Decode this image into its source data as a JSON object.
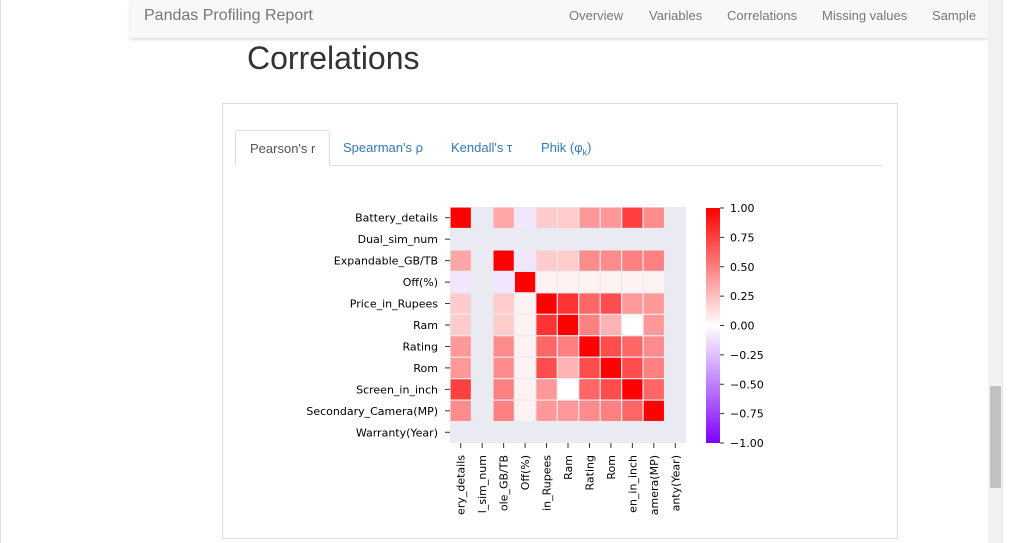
{
  "navbar": {
    "brand": "Pandas Profiling Report",
    "links": [
      "Overview",
      "Variables",
      "Correlations",
      "Missing values",
      "Sample"
    ]
  },
  "page": {
    "title": "Correlations"
  },
  "tabs": [
    "Pearson's r",
    "Spearman's ρ",
    "Kendall's τ",
    "Phik (φk)"
  ],
  "colors": {
    "positive": "#ff0000",
    "negative": "#7f00ff",
    "neutral": "#ffffff",
    "grid": "#eaeaf2",
    "link": "#337ab7"
  },
  "chart_data": {
    "type": "heatmap",
    "title": "",
    "variables": [
      "Battery_details",
      "Dual_sim_num",
      "Expandable_GB/TB",
      "Off(%)",
      "Price_in_Rupees",
      "Ram",
      "Rating",
      "Rom",
      "Screen_in_inch",
      "Secondary_Camera(MP)",
      "Warranty(Year)"
    ],
    "x_tick_labels_visible": [
      "ery_details",
      "l_sim_num",
      "ole_GB/TB",
      "Off(%)",
      "in_Rupees",
      "Ram",
      "Rating",
      "Rom",
      "en_in_inch",
      "amera(MP)",
      "anty(Year)"
    ],
    "matrix": [
      [
        1.0,
        null,
        0.35,
        -0.1,
        0.2,
        0.2,
        0.4,
        0.4,
        0.75,
        0.45,
        null
      ],
      [
        null,
        null,
        null,
        null,
        null,
        null,
        null,
        null,
        null,
        null,
        null
      ],
      [
        0.35,
        null,
        1.0,
        -0.1,
        0.2,
        0.2,
        0.45,
        0.45,
        0.5,
        0.5,
        null
      ],
      [
        -0.1,
        null,
        -0.1,
        1.0,
        0.05,
        0.05,
        0.05,
        0.05,
        0.05,
        0.05,
        null
      ],
      [
        0.2,
        null,
        0.2,
        0.05,
        1.0,
        0.8,
        0.6,
        0.7,
        0.4,
        0.4,
        null
      ],
      [
        0.2,
        null,
        0.2,
        0.05,
        0.8,
        1.0,
        0.5,
        0.3,
        0.0,
        0.4,
        null
      ],
      [
        0.4,
        null,
        0.45,
        0.05,
        0.6,
        0.5,
        1.0,
        0.7,
        0.6,
        0.45,
        null
      ],
      [
        0.4,
        null,
        0.45,
        0.05,
        0.7,
        0.3,
        0.7,
        1.0,
        0.7,
        0.5,
        null
      ],
      [
        0.75,
        null,
        0.5,
        0.05,
        0.4,
        0.0,
        0.6,
        0.7,
        1.0,
        0.6,
        null
      ],
      [
        0.45,
        null,
        0.5,
        0.05,
        0.4,
        0.4,
        0.45,
        0.5,
        0.6,
        1.0,
        null
      ],
      [
        null,
        null,
        null,
        null,
        null,
        null,
        null,
        null,
        null,
        null,
        null
      ]
    ],
    "colorbar": {
      "ticks": [
        1.0,
        0.75,
        0.5,
        0.25,
        0.0,
        -0.25,
        -0.5,
        -0.75,
        -1.0
      ],
      "tick_labels": [
        "1.00",
        "0.75",
        "0.50",
        "0.25",
        "0.00",
        "−0.25",
        "−0.50",
        "−0.75",
        "−1.00"
      ],
      "vmin": -1.0,
      "vmax": 1.0
    }
  }
}
